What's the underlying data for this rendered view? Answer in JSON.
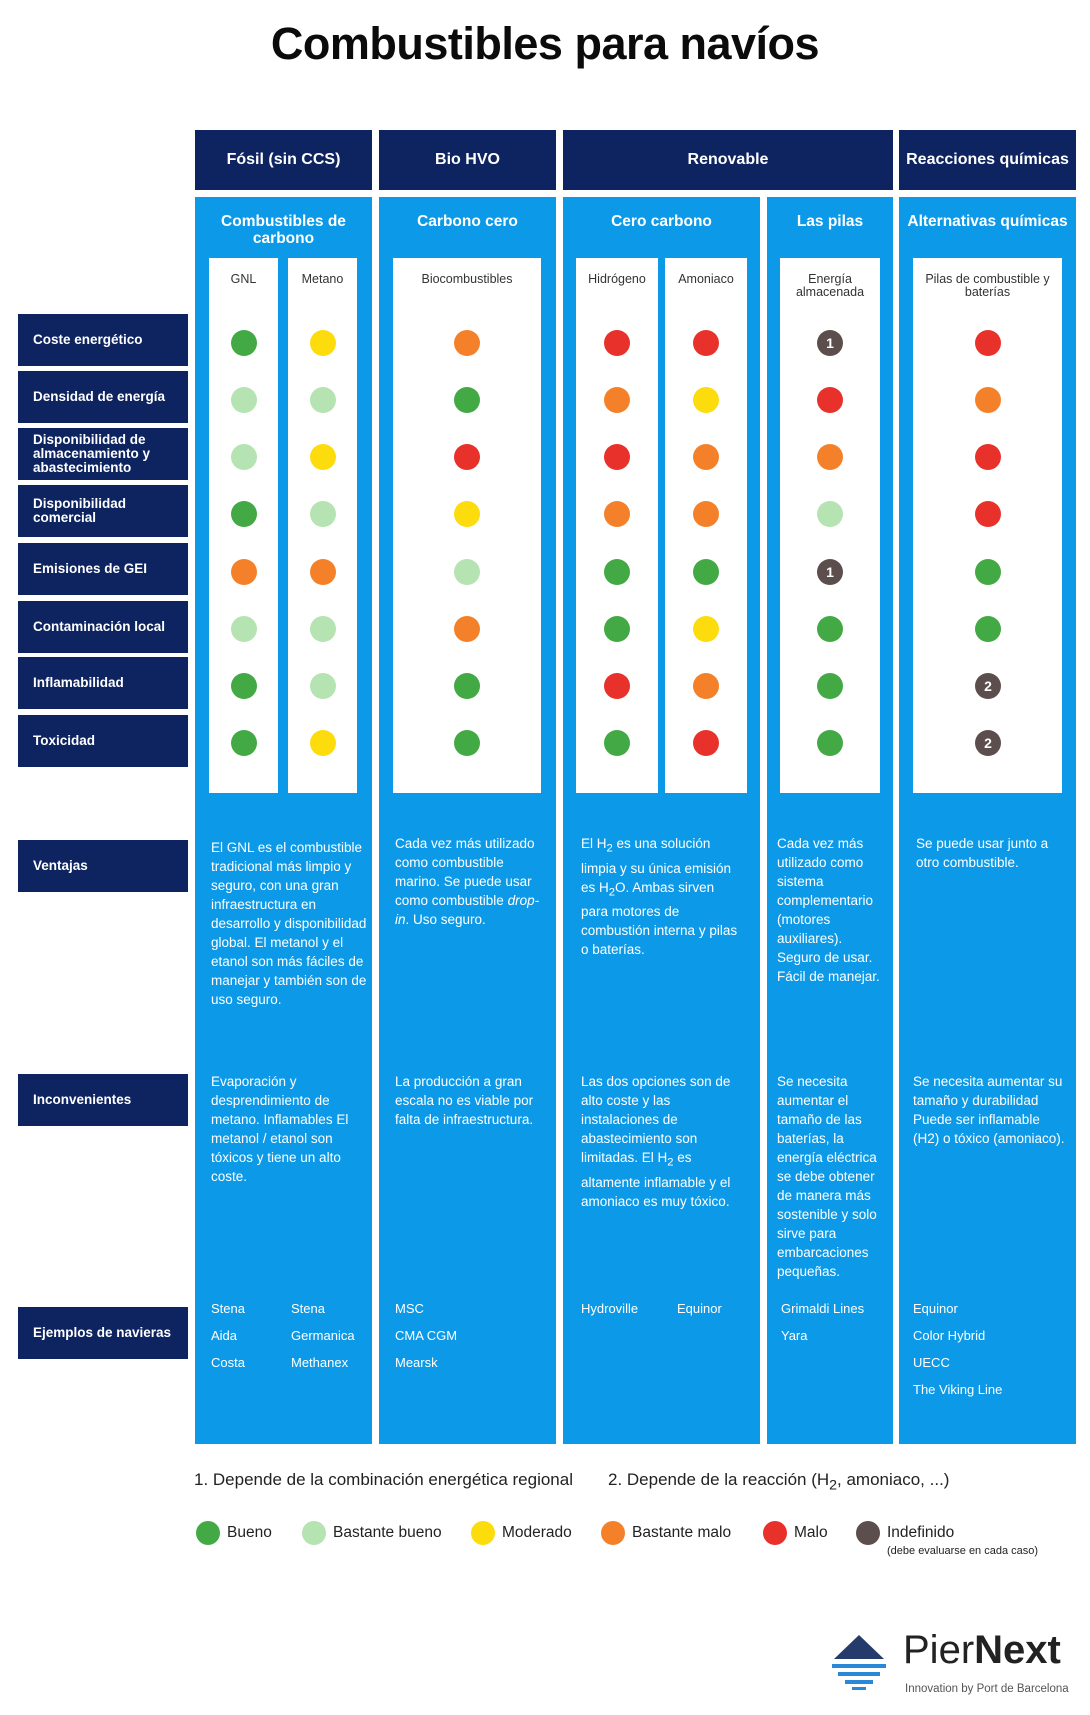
{
  "title": "Combustibles para navíos",
  "colors": {
    "bueno": "#43a944",
    "bastante_bueno": "#b5e3b2",
    "moderado": "#fddc0d",
    "bastante_malo": "#f4812a",
    "malo": "#e8312a",
    "indefinido": "#5b4e4c",
    "navy": "#0e2461",
    "blue": "#0c9ae8"
  },
  "categories": [
    "Fósil (sin CCS)",
    "Bio HVO",
    "Renovable",
    "Reacciones químicas"
  ],
  "columns": [
    {
      "title": "Combustibles de carbono",
      "cards": [
        "GNL",
        "Metano"
      ]
    },
    {
      "title": "Carbono cero",
      "cards": [
        "Biocombustibles"
      ]
    },
    {
      "title": "Cero carbono",
      "cards": [
        "Hidrógeno",
        "Amoniaco"
      ]
    },
    {
      "title": "Las pilas",
      "cards": [
        "Energía almacenada"
      ]
    },
    {
      "title": "Alternativas químicas",
      "cards": [
        "Pilas de combustible y baterías"
      ]
    }
  ],
  "rows": [
    "Coste energético",
    "Densidad de energía",
    "Disponibilidad de almacenamiento y abastecimiento",
    "Disponibilidad comercial",
    "Emisiones de GEI",
    "Contaminación local",
    "Inflamabilidad",
    "Toxicidad"
  ],
  "ratings": [
    [
      "bueno",
      "moderado",
      "bastante_malo",
      "malo",
      "malo",
      "indefinido:1",
      "malo"
    ],
    [
      "bastante_bueno",
      "bastante_bueno",
      "bueno",
      "bastante_malo",
      "moderado",
      "malo",
      "bastante_malo"
    ],
    [
      "bastante_bueno",
      "moderado",
      "malo",
      "malo",
      "bastante_malo",
      "bastante_malo",
      "malo"
    ],
    [
      "bueno",
      "bastante_bueno",
      "moderado",
      "bastante_malo",
      "bastante_malo",
      "bastante_bueno",
      "malo"
    ],
    [
      "bastante_malo",
      "bastante_malo",
      "bastante_bueno",
      "bueno",
      "bueno",
      "indefinido:1",
      "bueno"
    ],
    [
      "bastante_bueno",
      "bastante_bueno",
      "bastante_malo",
      "bueno",
      "moderado",
      "bueno",
      "bueno"
    ],
    [
      "bueno",
      "bastante_bueno",
      "bueno",
      "malo",
      "bastante_malo",
      "bueno",
      "indefinido:2"
    ],
    [
      "bueno",
      "moderado",
      "bueno",
      "bueno",
      "malo",
      "bueno",
      "indefinido:2"
    ]
  ],
  "section_labels": {
    "ventajas": "Ventajas",
    "inconvenientes": "Inconvenientes",
    "ejemplos": "Ejemplos de navieras"
  },
  "ventajas": [
    "El GNL es el combustible tradicional más limpio y seguro, con una gran infraestructura en desarrollo y disponibilidad global. El metanol y el etanol son más fáciles de manejar y también son de uso seguro.",
    "Cada vez más utilizado como combustible marino. Se puede usar como combustible drop-in. Uso seguro.",
    "El H2 es una solución limpia y su única emisión es H2O. Ambas sirven para motores de combustión interna y pilas o baterías.",
    "Cada vez más utilizado como sistema complementario (motores auxiliares). Seguro de usar. Fácil de manejar.",
    "Se puede usar junto a otro combustible."
  ],
  "inconvenientes": [
    "Evaporación y desprendimiento de metano. Inflamables El metanol / etanol son tóxicos y tiene un alto coste.",
    "La producción a gran escala no es viable por falta de infraestructura.",
    "Las dos opciones son de alto coste y las instalaciones de abastecimiento son limitadas. El H2 es altamente inflamable y el amoniaco es muy tóxico.",
    "Se necesita aumentar el tamaño de las baterías, la energía eléctrica se debe obtener de manera más sostenible y solo sirve para embarcaciones pequeñas.",
    "Se necesita aumentar su tamaño y durabilidad Puede ser inflamable (H2) o tóxico (amoniaco)."
  ],
  "examples": {
    "gnl": [
      "Stena",
      "Aida",
      "Costa"
    ],
    "metano": [
      "Stena",
      "Germanica",
      "Methanex"
    ],
    "bio": [
      "MSC",
      "CMA CGM",
      "Mearsk"
    ],
    "hidrogeno": [
      "Hydroville"
    ],
    "amoniaco": [
      "Equinor"
    ],
    "pilas": [
      "Grimaldi Lines",
      "Yara"
    ],
    "quimicas": [
      "Equinor",
      "Color Hybrid",
      "UECC",
      "The Viking Line"
    ]
  },
  "notes": {
    "note1": "1. Depende de la combinación energética regional",
    "note2": "2. Depende de la reacción (H2, amoniaco, ...)"
  },
  "legend": [
    {
      "key": "bueno",
      "label": "Bueno"
    },
    {
      "key": "bastante_bueno",
      "label": "Bastante bueno"
    },
    {
      "key": "moderado",
      "label": "Moderado"
    },
    {
      "key": "bastante_malo",
      "label": "Bastante malo"
    },
    {
      "key": "malo",
      "label": "Malo"
    },
    {
      "key": "indefinido",
      "label": "Indefinido",
      "sub": "(debe evaluarse en cada caso)"
    }
  ],
  "logo": {
    "name_light": "Pier",
    "name_bold": "Next",
    "tagline": "Innovation by Port de Barcelona"
  }
}
